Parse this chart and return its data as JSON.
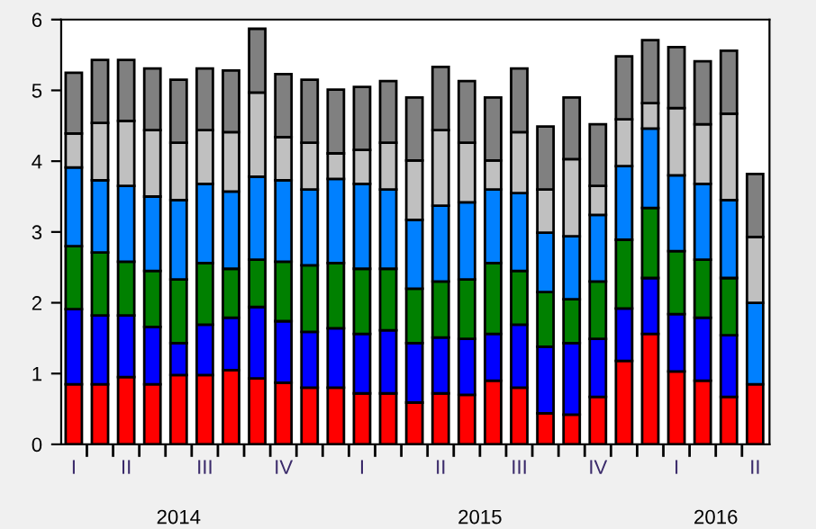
{
  "chart_data": {
    "type": "bar",
    "stacked": true,
    "categories": [
      "I",
      null,
      "II",
      null,
      null,
      "III",
      null,
      null,
      "IV",
      null,
      null,
      "I",
      null,
      null,
      "II",
      null,
      null,
      "III",
      null,
      null,
      "IV",
      null,
      null,
      "I",
      null,
      null,
      "II"
    ],
    "series": [
      {
        "color": "#ff0000",
        "values": [
          0.85,
          0.85,
          0.95,
          0.85,
          0.98,
          0.98,
          1.05,
          0.93,
          0.87,
          0.8,
          0.8,
          0.72,
          0.72,
          0.59,
          0.72,
          0.7,
          0.9,
          0.8,
          0.44,
          0.42,
          0.67,
          1.18,
          1.56,
          1.03,
          0.9,
          0.67,
          0.85
        ]
      },
      {
        "color": "#0000ff",
        "values": [
          1.06,
          0.97,
          0.87,
          0.81,
          0.45,
          0.71,
          0.74,
          1.01,
          0.87,
          0.79,
          0.84,
          0.84,
          0.89,
          0.84,
          0.79,
          0.79,
          0.66,
          0.89,
          0.94,
          1.01,
          0.82,
          0.74,
          0.79,
          0.81,
          0.89,
          0.87,
          null
        ]
      },
      {
        "color": "#008000",
        "values": [
          0.89,
          0.89,
          0.76,
          0.79,
          0.9,
          0.87,
          0.69,
          0.67,
          0.84,
          0.94,
          0.92,
          0.92,
          0.87,
          0.77,
          0.79,
          0.84,
          1.0,
          0.76,
          0.77,
          0.62,
          0.81,
          0.97,
          0.99,
          0.89,
          0.82,
          0.81,
          null
        ]
      },
      {
        "color": "#0080ff",
        "values": [
          1.11,
          1.02,
          1.07,
          1.05,
          1.12,
          1.12,
          1.09,
          1.17,
          1.15,
          1.07,
          1.19,
          1.2,
          1.12,
          0.97,
          1.07,
          1.09,
          1.04,
          1.1,
          0.84,
          0.89,
          0.94,
          1.04,
          1.12,
          1.07,
          1.07,
          1.1,
          1.15
        ]
      },
      {
        "color": "#c0c0c0",
        "values": [
          0.48,
          0.81,
          0.92,
          0.94,
          0.81,
          0.76,
          0.84,
          1.19,
          0.61,
          0.66,
          0.36,
          0.48,
          0.66,
          0.84,
          1.07,
          0.84,
          0.41,
          0.86,
          0.61,
          1.09,
          0.41,
          0.66,
          0.36,
          0.95,
          0.84,
          1.22,
          0.93
        ]
      },
      {
        "color": "#808080",
        "values": [
          0.86,
          0.89,
          0.86,
          0.87,
          0.89,
          0.87,
          0.87,
          0.9,
          0.89,
          0.89,
          0.9,
          0.89,
          0.87,
          0.89,
          0.89,
          0.87,
          0.89,
          0.9,
          0.89,
          0.87,
          0.87,
          0.89,
          0.89,
          0.86,
          0.89,
          0.89,
          0.89
        ]
      }
    ],
    "ylim": [
      0,
      6
    ],
    "yticks": [
      0,
      1,
      2,
      3,
      4,
      5,
      6
    ],
    "annotations": [
      "2014",
      "2015",
      "2016"
    ],
    "grid": false,
    "legend": false
  }
}
